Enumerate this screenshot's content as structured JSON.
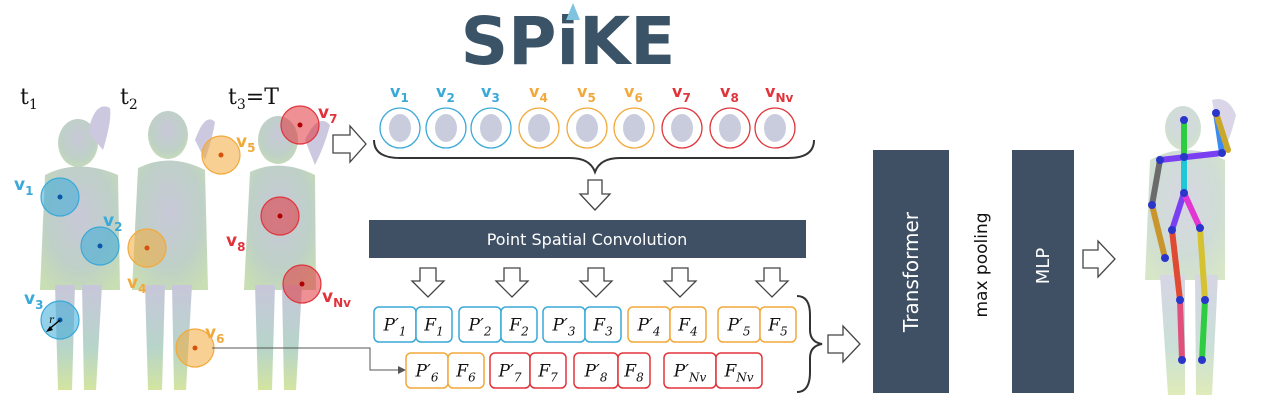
{
  "logo": {
    "text": "SPiKE",
    "color": "#3b5366",
    "accent": "#7fc3e0"
  },
  "colors": {
    "blue": "#3aa9d8",
    "orange": "#f2a93b",
    "red": "#e0343c",
    "dark_block": "#3f5064",
    "arrow_stroke": "#444444"
  },
  "time_labels": {
    "t1": "t",
    "t1_sub": "1",
    "t2": "t",
    "t2_sub": "2",
    "t3": "t",
    "t3_sub": "3",
    "t3_suffix": "=T"
  },
  "left_volumes": [
    {
      "label": "v",
      "sub": "1",
      "group": "blue"
    },
    {
      "label": "v",
      "sub": "2",
      "group": "blue"
    },
    {
      "label": "v",
      "sub": "3",
      "group": "blue"
    },
    {
      "label": "v",
      "sub": "4",
      "group": "orange"
    },
    {
      "label": "v",
      "sub": "5",
      "group": "orange"
    },
    {
      "label": "v",
      "sub": "6",
      "group": "orange"
    },
    {
      "label": "v",
      "sub": "7",
      "group": "red"
    },
    {
      "label": "v",
      "sub": "8",
      "group": "red"
    },
    {
      "label": "v",
      "sub": "Nv",
      "group": "red"
    }
  ],
  "radius_label": "r",
  "volume_row": [
    {
      "label": "v",
      "sub": "1",
      "group": "blue"
    },
    {
      "label": "v",
      "sub": "2",
      "group": "blue"
    },
    {
      "label": "v",
      "sub": "3",
      "group": "blue"
    },
    {
      "label": "v",
      "sub": "4",
      "group": "orange"
    },
    {
      "label": "v",
      "sub": "5",
      "group": "orange"
    },
    {
      "label": "v",
      "sub": "6",
      "group": "orange"
    },
    {
      "label": "v",
      "sub": "7",
      "group": "red"
    },
    {
      "label": "v",
      "sub": "8",
      "group": "red"
    },
    {
      "label": "v",
      "sub": "Nv",
      "group": "red"
    }
  ],
  "conv_block": {
    "label": "Point Spatial Convolution"
  },
  "feature_row1": [
    {
      "p": "P′",
      "p_sub": "1",
      "f": "F",
      "f_sub": "1",
      "group": "blue"
    },
    {
      "p": "P′",
      "p_sub": "2",
      "f": "F",
      "f_sub": "2",
      "group": "blue"
    },
    {
      "p": "P′",
      "p_sub": "3",
      "f": "F",
      "f_sub": "3",
      "group": "blue"
    },
    {
      "p": "P′",
      "p_sub": "4",
      "f": "F",
      "f_sub": "4",
      "group": "orange"
    },
    {
      "p": "P′",
      "p_sub": "5",
      "f": "F",
      "f_sub": "5",
      "group": "orange"
    }
  ],
  "feature_row2": [
    {
      "p": "P′",
      "p_sub": "6",
      "f": "F",
      "f_sub": "6",
      "group": "orange"
    },
    {
      "p": "P′",
      "p_sub": "7",
      "f": "F",
      "f_sub": "7",
      "group": "red"
    },
    {
      "p": "P′",
      "p_sub": "8",
      "f": "F",
      "f_sub": "8",
      "group": "red"
    },
    {
      "p": "P′",
      "p_sub": "Nv",
      "f": "F",
      "f_sub": "Nv",
      "group": "red"
    }
  ],
  "transformer": {
    "label": "Transformer"
  },
  "pooling": {
    "label": "max pooling"
  },
  "mlp": {
    "label": "MLP"
  }
}
